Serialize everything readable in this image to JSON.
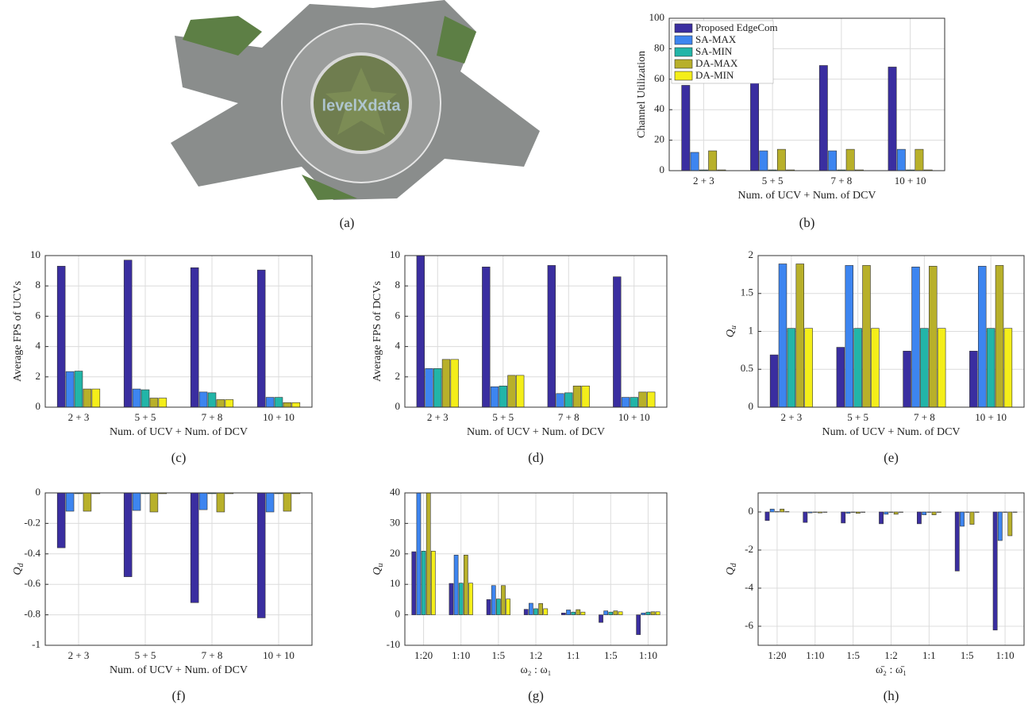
{
  "photo": {
    "watermark": "levelXdata",
    "caption": "(a)"
  },
  "chart_data": [
    {
      "type": "bar",
      "caption": "(b)",
      "ylabel": "Channel Utilization",
      "xlabel": "Num. of UCV + Num. of DCV",
      "categories": [
        "2 + 3",
        "5 + 5",
        "7 + 8",
        "10 + 10"
      ],
      "ylim": [
        0,
        100
      ],
      "yticks": [
        0,
        20,
        40,
        60,
        80,
        100
      ],
      "grid": true,
      "legend": "upper left",
      "series": [
        {
          "name": "Proposed EdgeCom",
          "color": "#3a2ea0",
          "values": [
            56,
            62,
            69,
            68
          ]
        },
        {
          "name": "SA-MAX",
          "color": "#3d85f0",
          "values": [
            12,
            13,
            13,
            14
          ]
        },
        {
          "name": "SA-MIN",
          "color": "#22b5a8",
          "values": [
            0.5,
            0.5,
            0.5,
            0.5
          ]
        },
        {
          "name": "DA-MAX",
          "color": "#b8b02a",
          "values": [
            13,
            14,
            14,
            14
          ]
        },
        {
          "name": "DA-MIN",
          "color": "#f4ee1a",
          "values": [
            0.5,
            0.5,
            0.5,
            0.5
          ]
        }
      ]
    },
    {
      "type": "bar",
      "caption": "(c)",
      "ylabel": "Average FPS of UCVs",
      "xlabel": "Num. of UCV + Num. of DCV",
      "categories": [
        "2 + 3",
        "5 + 5",
        "7 + 8",
        "10 + 10"
      ],
      "ylim": [
        0,
        10
      ],
      "yticks": [
        0,
        2,
        4,
        6,
        8,
        10
      ],
      "grid": true,
      "series": [
        {
          "color": "#3a2ea0",
          "values": [
            9.3,
            9.7,
            9.2,
            9.05
          ]
        },
        {
          "color": "#3d85f0",
          "values": [
            2.35,
            1.2,
            1.0,
            0.65
          ]
        },
        {
          "color": "#22b5a8",
          "values": [
            2.38,
            1.15,
            0.95,
            0.65
          ]
        },
        {
          "color": "#b8b02a",
          "values": [
            1.2,
            0.6,
            0.5,
            0.3
          ]
        },
        {
          "color": "#f4ee1a",
          "values": [
            1.2,
            0.6,
            0.5,
            0.3
          ]
        }
      ]
    },
    {
      "type": "bar",
      "caption": "(d)",
      "ylabel": "Average FPS of DCVs",
      "xlabel": "Num. of UCV + Num. of DCV",
      "categories": [
        "2 + 3",
        "5 + 5",
        "7 + 8",
        "10 + 10"
      ],
      "ylim": [
        0,
        10
      ],
      "yticks": [
        0,
        2,
        4,
        6,
        8,
        10
      ],
      "grid": true,
      "series": [
        {
          "color": "#3a2ea0",
          "values": [
            10,
            9.25,
            9.35,
            8.6
          ]
        },
        {
          "color": "#3d85f0",
          "values": [
            2.55,
            1.35,
            0.9,
            0.65
          ]
        },
        {
          "color": "#22b5a8",
          "values": [
            2.55,
            1.4,
            0.95,
            0.65
          ]
        },
        {
          "color": "#b8b02a",
          "values": [
            3.15,
            2.1,
            1.4,
            1.0
          ]
        },
        {
          "color": "#f4ee1a",
          "values": [
            3.15,
            2.1,
            1.4,
            1.0
          ]
        }
      ]
    },
    {
      "type": "bar",
      "caption": "(e)",
      "ylabel": "Q",
      "ylabel_sub": "u",
      "xlabel": "Num. of UCV + Num. of DCV",
      "categories": [
        "2 + 3",
        "5 + 5",
        "7 + 8",
        "10 + 10"
      ],
      "ylim": [
        0,
        2
      ],
      "yticks": [
        0,
        0.5,
        1,
        1.5,
        2
      ],
      "grid": true,
      "series": [
        {
          "color": "#3a2ea0",
          "values": [
            0.69,
            0.79,
            0.74,
            0.74
          ]
        },
        {
          "color": "#3d85f0",
          "values": [
            1.89,
            1.87,
            1.85,
            1.86
          ]
        },
        {
          "color": "#22b5a8",
          "values": [
            1.04,
            1.04,
            1.04,
            1.04
          ]
        },
        {
          "color": "#b8b02a",
          "values": [
            1.89,
            1.87,
            1.86,
            1.87
          ]
        },
        {
          "color": "#f4ee1a",
          "values": [
            1.04,
            1.04,
            1.04,
            1.04
          ]
        }
      ]
    },
    {
      "type": "bar",
      "caption": "(f)",
      "ylabel": "Q",
      "ylabel_sub": "d",
      "xlabel": "Num. of UCV + Num. of DCV",
      "categories": [
        "2 + 3",
        "5 + 5",
        "7 + 8",
        "10 + 10"
      ],
      "ylim": [
        -1,
        0
      ],
      "yticks": [
        -1,
        -0.8,
        -0.6,
        -0.4,
        -0.2,
        0
      ],
      "grid": true,
      "series": [
        {
          "color": "#3a2ea0",
          "values": [
            -0.36,
            -0.55,
            -0.72,
            -0.82
          ]
        },
        {
          "color": "#3d85f0",
          "values": [
            -0.12,
            -0.115,
            -0.11,
            -0.125
          ]
        },
        {
          "color": "#22b5a8",
          "values": [
            -0.005,
            -0.005,
            -0.005,
            -0.005
          ]
        },
        {
          "color": "#b8b02a",
          "values": [
            -0.12,
            -0.125,
            -0.125,
            -0.12
          ]
        },
        {
          "color": "#f4ee1a",
          "values": [
            -0.005,
            -0.005,
            -0.005,
            -0.005
          ]
        }
      ]
    },
    {
      "type": "bar",
      "caption": "(g)",
      "ylabel": "Q",
      "ylabel_sub": "u",
      "xlabel": "ω₂ : ω₁",
      "categories": [
        "1:20",
        "1:10",
        "1:5",
        "1:2",
        "1:1",
        "1:5",
        "1:10"
      ],
      "ylim": [
        -10,
        40
      ],
      "yticks": [
        -10,
        0,
        10,
        20,
        30,
        40
      ],
      "grid": true,
      "series": [
        {
          "color": "#3a2ea0",
          "values": [
            20.7,
            10.3,
            5.0,
            1.8,
            0.6,
            -2.5,
            -6.5
          ]
        },
        {
          "color": "#3d85f0",
          "values": [
            40,
            19.6,
            9.6,
            3.8,
            1.6,
            1.3,
            0.6
          ]
        },
        {
          "color": "#22b5a8",
          "values": [
            20.9,
            10.4,
            5.2,
            2.0,
            0.9,
            0.9,
            0.9
          ]
        },
        {
          "color": "#b8b02a",
          "values": [
            40,
            19.6,
            9.6,
            3.7,
            1.7,
            1.3,
            1.0
          ]
        },
        {
          "color": "#f4ee1a",
          "values": [
            20.9,
            10.4,
            5.2,
            2.0,
            0.9,
            1.0,
            1.0
          ]
        }
      ]
    },
    {
      "type": "bar",
      "caption": "(h)",
      "ylabel": "Q",
      "ylabel_sub": "d",
      "xlabel": "ω̄₂ : ω̄₁",
      "categories": [
        "1:20",
        "1:10",
        "1:5",
        "1:2",
        "1:1",
        "1:5",
        "1:10"
      ],
      "ylim": [
        -7,
        1
      ],
      "yticks": [
        -6,
        -4,
        -2,
        0
      ],
      "grid": true,
      "series": [
        {
          "color": "#3a2ea0",
          "values": [
            -0.45,
            -0.55,
            -0.58,
            -0.62,
            -0.62,
            -3.1,
            -6.2
          ]
        },
        {
          "color": "#3d85f0",
          "values": [
            0.15,
            -0.05,
            -0.07,
            -0.12,
            -0.15,
            -0.75,
            -1.5
          ]
        },
        {
          "color": "#22b5a8",
          "values": [
            0.02,
            0,
            0,
            0,
            0,
            0,
            0
          ]
        },
        {
          "color": "#b8b02a",
          "values": [
            0.15,
            -0.05,
            -0.07,
            -0.12,
            -0.15,
            -0.65,
            -1.25
          ]
        },
        {
          "color": "#f4ee1a",
          "values": [
            0.02,
            0,
            0,
            0,
            0,
            0,
            0
          ]
        }
      ]
    }
  ]
}
